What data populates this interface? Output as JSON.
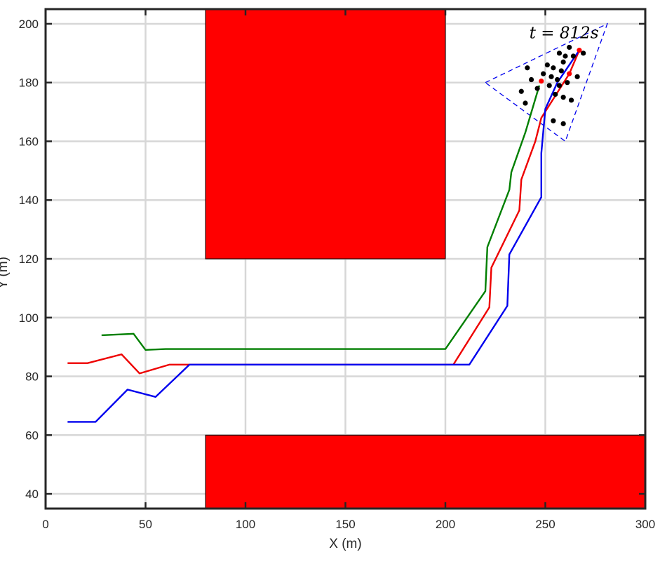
{
  "chart_data": {
    "type": "line",
    "xlabel": "X (m)",
    "ylabel": "Y (m)",
    "xlim": [
      0,
      300
    ],
    "ylim": [
      35,
      205
    ],
    "xticks": [
      0,
      50,
      100,
      150,
      200,
      250,
      300
    ],
    "yticks": [
      40,
      60,
      80,
      100,
      120,
      140,
      160,
      180,
      200
    ],
    "grid": true,
    "annotation": {
      "text": "t = 812s",
      "x": 242,
      "y": 197
    },
    "colors": {
      "obstacle": "#ff0000",
      "green": "#007f00",
      "red": "#ee0000",
      "blue": "#0000ee",
      "sensor": "#0000ee",
      "targets": "#000000",
      "agents": "#ff0000"
    },
    "obstacles": [
      {
        "x0": 80,
        "x1": 200,
        "y0": 120,
        "y1": 205
      },
      {
        "x0": 80,
        "x1": 300,
        "y0": 35,
        "y1": 60
      }
    ],
    "series": [
      {
        "color_key": "green",
        "points": [
          [
            28,
            94
          ],
          [
            44,
            94.5
          ],
          [
            50,
            89
          ],
          [
            60,
            89.3
          ],
          [
            200,
            89.3
          ],
          [
            220,
            109
          ],
          [
            221,
            124
          ],
          [
            232,
            143.5
          ],
          [
            233,
            149.5
          ],
          [
            240,
            163
          ],
          [
            247,
            179
          ]
        ]
      },
      {
        "color_key": "red",
        "points": [
          [
            11,
            84.5
          ],
          [
            21,
            84.5
          ],
          [
            38,
            87.5
          ],
          [
            47,
            81
          ],
          [
            62,
            84
          ],
          [
            204,
            84
          ],
          [
            222,
            103.5
          ],
          [
            223,
            117
          ],
          [
            237,
            136.5
          ],
          [
            238,
            147
          ],
          [
            245,
            160
          ],
          [
            248,
            168
          ],
          [
            262,
            183
          ],
          [
            267,
            191
          ]
        ]
      },
      {
        "color_key": "blue",
        "points": [
          [
            11,
            64.5
          ],
          [
            25,
            64.5
          ],
          [
            41,
            75.5
          ],
          [
            55,
            73
          ],
          [
            72,
            84
          ],
          [
            212,
            84
          ],
          [
            231,
            104
          ],
          [
            232,
            121.5
          ],
          [
            248,
            141
          ],
          [
            248,
            156
          ],
          [
            250,
            171
          ],
          [
            256,
            180
          ],
          [
            262,
            186
          ],
          [
            267,
            191
          ]
        ]
      }
    ],
    "sensor_triangle": [
      [
        220,
        180
      ],
      [
        281,
        200
      ],
      [
        260,
        160
      ]
    ],
    "targets": [
      [
        241,
        185
      ],
      [
        243,
        181
      ],
      [
        238,
        177
      ],
      [
        246,
        178
      ],
      [
        240,
        173
      ],
      [
        249,
        183
      ],
      [
        251,
        186
      ],
      [
        253,
        182
      ],
      [
        254,
        185
      ],
      [
        257,
        190
      ],
      [
        260,
        189
      ],
      [
        262,
        192
      ],
      [
        264,
        189
      ],
      [
        269,
        190
      ],
      [
        259,
        187
      ],
      [
        258,
        184
      ],
      [
        256,
        181
      ],
      [
        252,
        179
      ],
      [
        255,
        176
      ],
      [
        257,
        179
      ],
      [
        259,
        175
      ],
      [
        263,
        174
      ],
      [
        266,
        182
      ],
      [
        261,
        180
      ],
      [
        254,
        167
      ],
      [
        259,
        166
      ]
    ],
    "agents": [
      [
        248,
        180.5
      ],
      [
        262,
        183
      ],
      [
        267,
        191
      ]
    ]
  }
}
